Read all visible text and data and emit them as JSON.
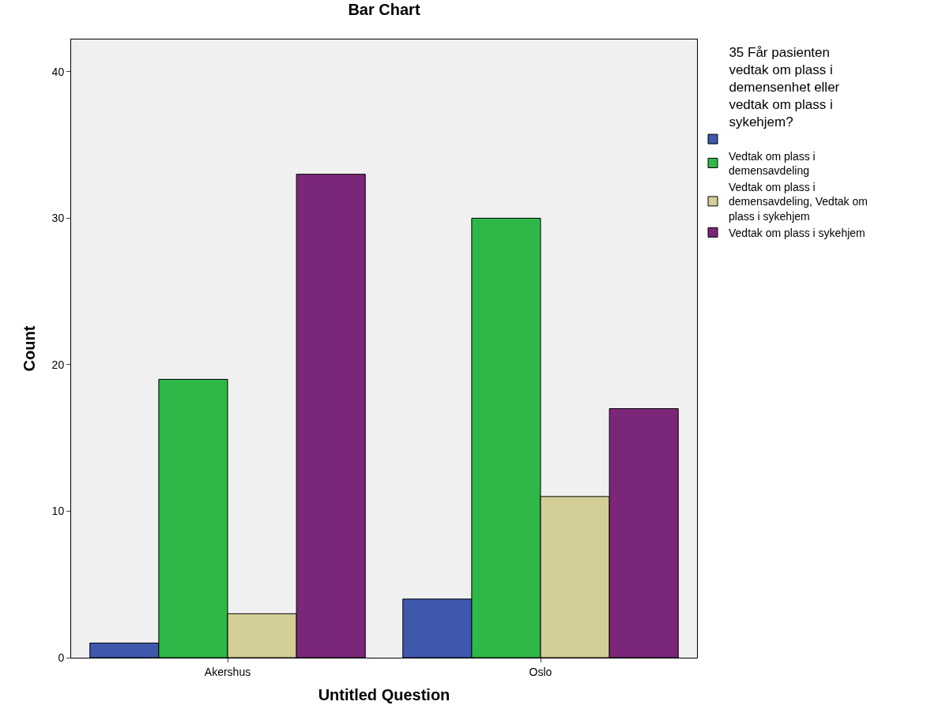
{
  "chart_data": {
    "type": "bar",
    "title": "Bar Chart",
    "xlabel": "Untitled Question",
    "ylabel": "Count",
    "legend_title": "35 Får pasienten vedtak om plass i demensenhet eller vedtak om plass i sykehjem?",
    "categories": [
      "Akershus",
      "Oslo"
    ],
    "series": [
      {
        "color": "#3e58ac",
        "values": [
          1,
          4
        ]
      },
      {
        "name": "Vedtak om plass i demensavdeling",
        "color": "#2eb848",
        "values": [
          19,
          30
        ]
      },
      {
        "name": "Vedtak om plass i demensavdeling, Vedtak om plass i sykehjem",
        "color": "#d3ce97",
        "values": [
          3,
          11
        ]
      },
      {
        "name": "Vedtak om plass i sykehjem",
        "color": "#7b2779",
        "values": [
          33,
          17
        ]
      }
    ],
    "ylim": [
      0,
      42.2
    ],
    "yticks": [
      0,
      10,
      20,
      30,
      40
    ],
    "grid": false,
    "legend": "top right"
  }
}
